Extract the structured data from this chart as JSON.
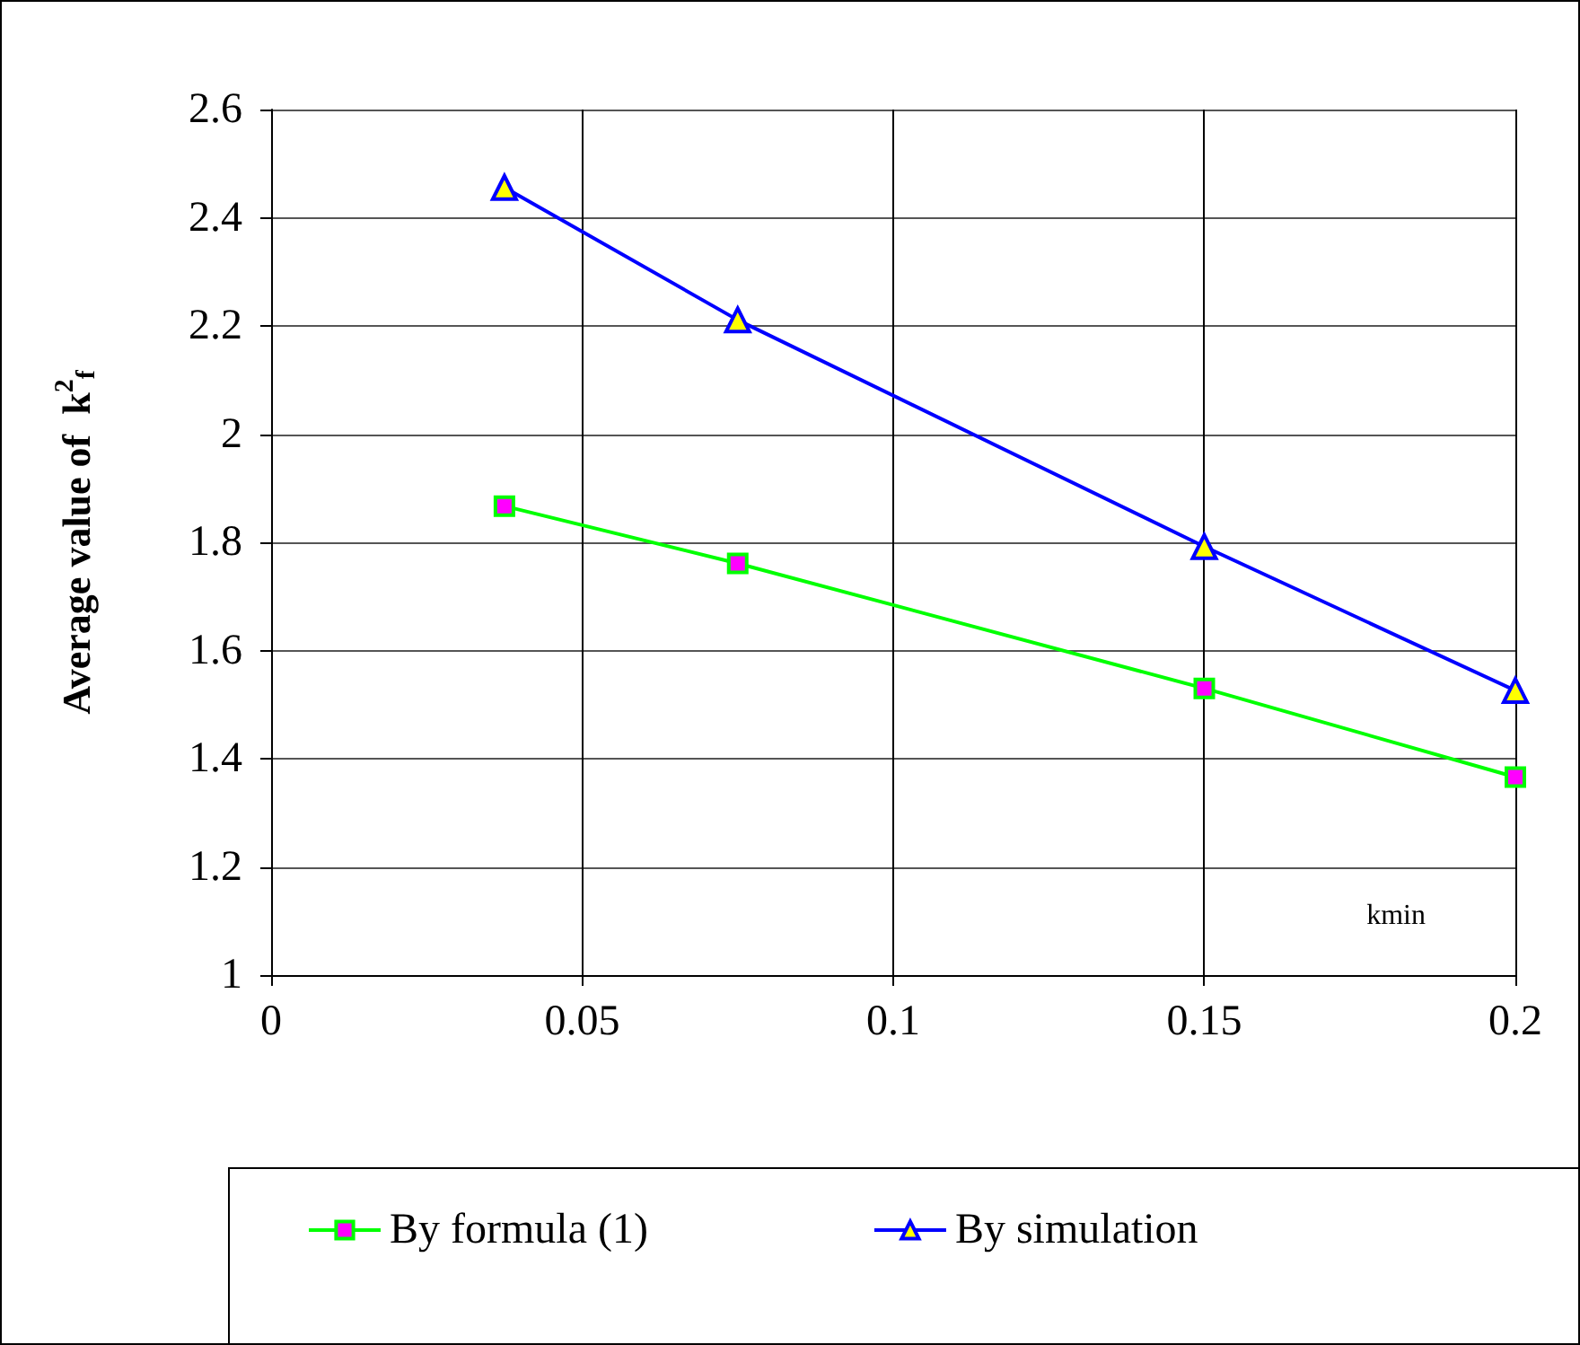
{
  "chart_data": {
    "type": "line",
    "ylabel": "Average value of  k$^{2}$$_{f}$",
    "xlabel": "kmin",
    "x": [
      0.0375,
      0.075,
      0.15,
      0.2
    ],
    "series": [
      {
        "name": "By formula (1)",
        "color": "#00ff00",
        "marker": "square",
        "values": [
          1.867,
          1.761,
          1.53,
          1.366
        ]
      },
      {
        "name": "By simulation",
        "color": "#0000ff",
        "marker": "triangle",
        "values": [
          2.456,
          2.211,
          1.792,
          1.526
        ]
      }
    ],
    "xlim": [
      0,
      0.2
    ],
    "xticks": [
      0,
      0.05,
      0.1,
      0.15,
      0.2
    ],
    "ylim": [
      1,
      2.6
    ],
    "yticks": [
      1,
      1.2,
      1.4,
      1.6,
      1.8,
      2,
      2.2,
      2.4,
      2.6
    ],
    "grid": true,
    "legend": "bottom"
  }
}
